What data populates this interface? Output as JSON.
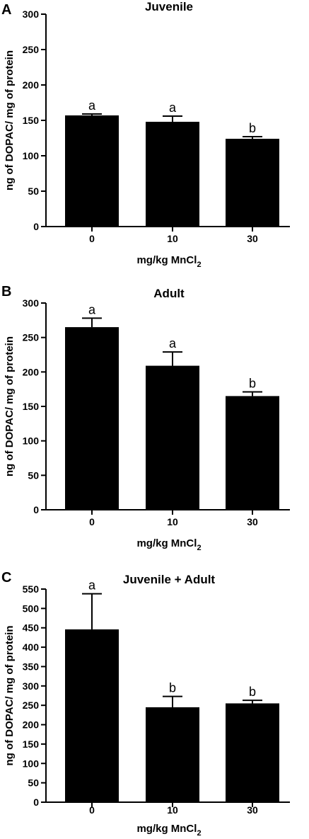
{
  "chart_data": [
    {
      "type": "bar",
      "panel": "A",
      "title": "Juvenile",
      "xlabel": "mg/kg MnCl",
      "xlabel_sub": "2",
      "ylabel": "ng of DOPAC/ mg of protein",
      "categories": [
        "0",
        "10",
        "30"
      ],
      "values": [
        157,
        148,
        124
      ],
      "errors": [
        2,
        8,
        3
      ],
      "letters": [
        "a",
        "a",
        "b"
      ],
      "ylim": [
        0,
        300
      ],
      "yticks": [
        0,
        50,
        100,
        150,
        200,
        250,
        300
      ],
      "color": "#000000"
    },
    {
      "type": "bar",
      "panel": "B",
      "title": "Adult",
      "xlabel": "mg/kg MnCl",
      "xlabel_sub": "2",
      "ylabel": "ng of DOPAC/ mg of protein",
      "categories": [
        "0",
        "10",
        "30"
      ],
      "values": [
        265,
        209,
        165
      ],
      "errors": [
        13,
        20,
        6
      ],
      "letters": [
        "a",
        "a",
        "b"
      ],
      "ylim": [
        0,
        300
      ],
      "yticks": [
        0,
        50,
        100,
        150,
        200,
        250,
        300
      ],
      "color": "#000000"
    },
    {
      "type": "bar",
      "panel": "C",
      "title": "Juvenile + Adult",
      "xlabel": "mg/kg MnCl",
      "xlabel_sub": "2",
      "ylabel": "ng of DOPAC/ mg of protein",
      "categories": [
        "0",
        "10",
        "30"
      ],
      "values": [
        446,
        245,
        255
      ],
      "errors": [
        92,
        28,
        8
      ],
      "letters": [
        "a",
        "b",
        "b"
      ],
      "ylim": [
        0,
        550
      ],
      "yticks": [
        0,
        50,
        100,
        150,
        200,
        250,
        300,
        350,
        400,
        450,
        500,
        550
      ],
      "color": "#000000"
    }
  ]
}
